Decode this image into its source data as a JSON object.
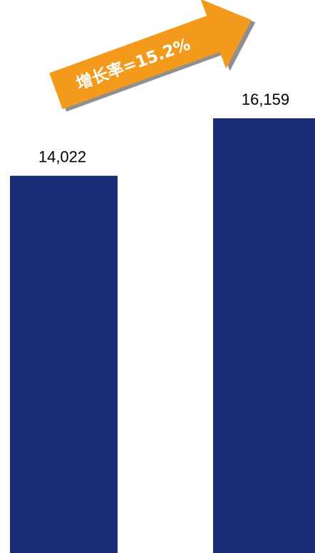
{
  "chart_data": {
    "type": "bar",
    "categories": [
      "",
      ""
    ],
    "values": [
      14022,
      16159
    ],
    "data_labels": [
      "14,022",
      "16,159"
    ],
    "ylim": [
      0,
      20000
    ],
    "grid": false,
    "bar_color": "#1b2c77",
    "annotation": {
      "text": "增长率=15.2%",
      "shape": "arrow",
      "color": "#f39a1e"
    }
  }
}
